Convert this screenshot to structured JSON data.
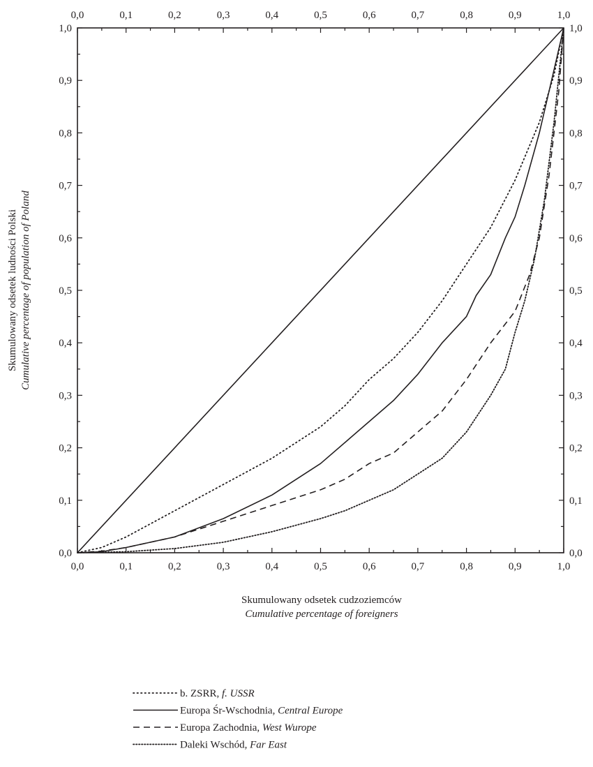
{
  "chart_data": {
    "type": "line",
    "xlabel": "Skumulowany odsetek cudzoziemców",
    "xlabel_en": "Cumulative percentage of foreigners",
    "ylabel": "Skumulowany odsetek ludności Polski",
    "ylabel_en": "Cumulative percentage of population of Poland",
    "xlim": [
      0,
      1
    ],
    "ylim": [
      0,
      1
    ],
    "x_ticks": [
      "0,0",
      "0,1",
      "0,2",
      "0,3",
      "0,4",
      "0,5",
      "0,6",
      "0,7",
      "0,8",
      "0,9",
      "1,0"
    ],
    "y_ticks": [
      "0,0",
      "0,1",
      "0,2",
      "0,3",
      "0,4",
      "0,5",
      "0,6",
      "0,7",
      "0,8",
      "0,9",
      "1,0"
    ],
    "grid": false,
    "legend_position": "bottom",
    "series": [
      {
        "key": "equality",
        "style": "solid",
        "x": [
          0,
          1
        ],
        "y": [
          0,
          1
        ]
      },
      {
        "key": "ussr",
        "legend_pl": "b. ZSRR, ",
        "legend_en": "f. USSR",
        "style": "dotted",
        "x": [
          0.0,
          0.05,
          0.1,
          0.2,
          0.3,
          0.4,
          0.5,
          0.55,
          0.6,
          0.65,
          0.7,
          0.75,
          0.8,
          0.85,
          0.9,
          0.95,
          0.98,
          1.0
        ],
        "y": [
          0.0,
          0.01,
          0.03,
          0.08,
          0.13,
          0.18,
          0.24,
          0.28,
          0.33,
          0.37,
          0.42,
          0.48,
          0.55,
          0.62,
          0.71,
          0.82,
          0.91,
          1.0
        ]
      },
      {
        "key": "central",
        "legend_pl": "Europa Śr-Wschodnia, ",
        "legend_en": "Central Europe",
        "style": "solid",
        "x": [
          0.0,
          0.05,
          0.1,
          0.2,
          0.3,
          0.4,
          0.5,
          0.55,
          0.6,
          0.65,
          0.7,
          0.75,
          0.8,
          0.82,
          0.85,
          0.88,
          0.9,
          0.92,
          0.95,
          0.98,
          1.0
        ],
        "y": [
          0.0,
          0.002,
          0.01,
          0.03,
          0.065,
          0.11,
          0.17,
          0.21,
          0.25,
          0.29,
          0.34,
          0.4,
          0.45,
          0.49,
          0.53,
          0.6,
          0.64,
          0.7,
          0.8,
          0.92,
          1.0
        ]
      },
      {
        "key": "west",
        "legend_pl": "Europa Zachodnia, ",
        "legend_en": "West Wurope",
        "style": "dashed",
        "x": [
          0.0,
          0.05,
          0.1,
          0.2,
          0.3,
          0.4,
          0.5,
          0.55,
          0.6,
          0.65,
          0.7,
          0.75,
          0.8,
          0.85,
          0.9,
          0.93,
          0.95,
          0.97,
          0.99,
          1.0
        ],
        "y": [
          0.0,
          0.003,
          0.01,
          0.03,
          0.06,
          0.09,
          0.12,
          0.14,
          0.17,
          0.19,
          0.23,
          0.27,
          0.33,
          0.4,
          0.46,
          0.53,
          0.6,
          0.72,
          0.88,
          1.0
        ]
      },
      {
        "key": "fareast",
        "legend_pl": "Daleki Wschód, ",
        "legend_en": "Far East",
        "style": "densedot",
        "x": [
          0.0,
          0.1,
          0.2,
          0.3,
          0.4,
          0.5,
          0.55,
          0.6,
          0.65,
          0.7,
          0.75,
          0.8,
          0.85,
          0.88,
          0.9,
          0.92,
          0.94,
          0.96,
          0.98,
          1.0
        ],
        "y": [
          0.0,
          0.002,
          0.008,
          0.02,
          0.04,
          0.065,
          0.08,
          0.1,
          0.12,
          0.15,
          0.18,
          0.23,
          0.3,
          0.35,
          0.42,
          0.48,
          0.56,
          0.67,
          0.82,
          1.0
        ]
      }
    ]
  }
}
